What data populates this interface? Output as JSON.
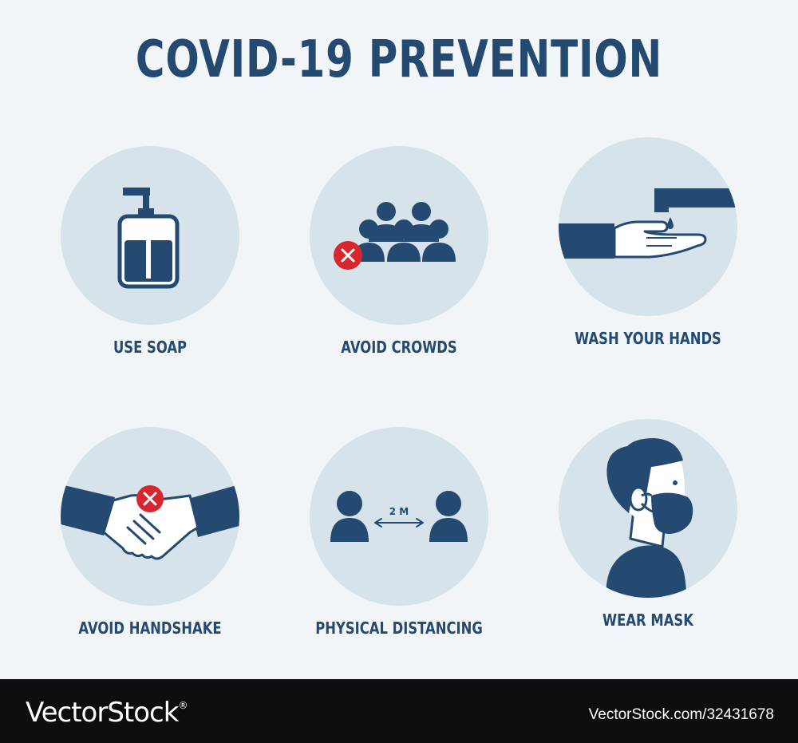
{
  "title": "COVID-19  PREVENTION",
  "items": [
    {
      "label": "USE SOAP",
      "icon": "soap-dispenser-icon"
    },
    {
      "label": "AVOID CROWDS",
      "icon": "crowd-icon"
    },
    {
      "label": "WASH YOUR HANDS",
      "icon": "hand-washing-icon"
    },
    {
      "label": "AVOID HANDSHAKE",
      "icon": "handshake-icon"
    },
    {
      "label": "PHYSICAL DISTANCING",
      "icon": "distancing-icon",
      "distance_label": "2 M"
    },
    {
      "label": "WEAR MASK",
      "icon": "masked-person-icon"
    }
  ],
  "footer": {
    "brand": "VectorStock",
    "brand_mark": "®",
    "ref": "VectorStock.com/32431678"
  },
  "colors": {
    "navy": "#254a72",
    "circle": "#d6e3ea",
    "background": "#f2f5f8",
    "warning": "#d8262f",
    "footer": "#0e0e10"
  }
}
